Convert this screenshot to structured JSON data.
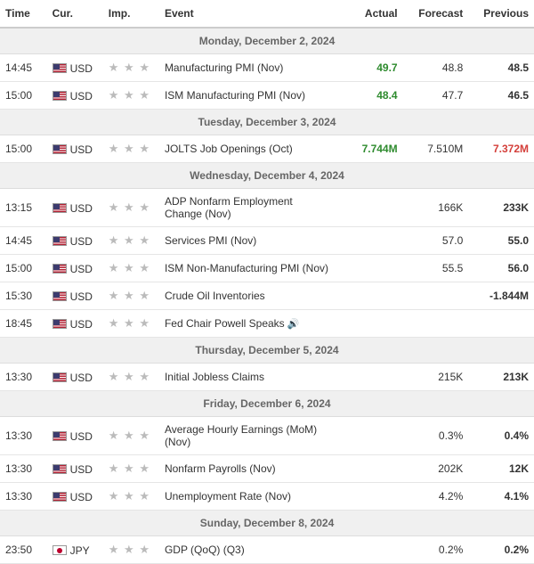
{
  "headers": {
    "time": "Time",
    "cur": "Cur.",
    "imp": "Imp.",
    "event": "Event",
    "actual": "Actual",
    "forecast": "Forecast",
    "previous": "Previous"
  },
  "days": [
    {
      "label": "Monday, December 2, 2024",
      "rows": [
        {
          "time": "14:45",
          "cur": "USD",
          "flag": "us",
          "stars": "★ ★ ★",
          "event": "Manufacturing PMI (Nov)",
          "actual": "49.7",
          "actual_class": "green",
          "forecast": "48.8",
          "previous": "48.5",
          "prev_class": ""
        },
        {
          "time": "15:00",
          "cur": "USD",
          "flag": "us",
          "stars": "★ ★ ★",
          "event": "ISM Manufacturing PMI (Nov)",
          "actual": "48.4",
          "actual_class": "green",
          "forecast": "47.7",
          "previous": "46.5",
          "prev_class": ""
        }
      ]
    },
    {
      "label": "Tuesday, December 3, 2024",
      "rows": [
        {
          "time": "15:00",
          "cur": "USD",
          "flag": "us",
          "stars": "★ ★ ★",
          "event": "JOLTS Job Openings (Oct)",
          "actual": "7.744M",
          "actual_class": "green",
          "forecast": "7.510M",
          "previous": "7.372M",
          "prev_class": "red"
        }
      ]
    },
    {
      "label": "Wednesday, December 4, 2024",
      "rows": [
        {
          "time": "13:15",
          "cur": "USD",
          "flag": "us",
          "stars": "★ ★ ★",
          "event": "ADP Nonfarm Employment Change (Nov)",
          "actual": "",
          "actual_class": "",
          "forecast": "166K",
          "previous": "233K",
          "prev_class": ""
        },
        {
          "time": "14:45",
          "cur": "USD",
          "flag": "us",
          "stars": "★ ★ ★",
          "event": "Services PMI (Nov)",
          "actual": "",
          "actual_class": "",
          "forecast": "57.0",
          "previous": "55.0",
          "prev_class": ""
        },
        {
          "time": "15:00",
          "cur": "USD",
          "flag": "us",
          "stars": "★ ★ ★",
          "event": "ISM Non-Manufacturing PMI (Nov)",
          "actual": "",
          "actual_class": "",
          "forecast": "55.5",
          "previous": "56.0",
          "prev_class": ""
        },
        {
          "time": "15:30",
          "cur": "USD",
          "flag": "us",
          "stars": "★ ★ ★",
          "event": "Crude Oil Inventories",
          "actual": "",
          "actual_class": "",
          "forecast": "",
          "previous": "-1.844M",
          "prev_class": ""
        },
        {
          "time": "18:45",
          "cur": "USD",
          "flag": "us",
          "stars": "★ ★ ★",
          "event": "Fed Chair Powell Speaks",
          "audio": true,
          "actual": "",
          "actual_class": "",
          "forecast": "",
          "previous": "",
          "prev_class": ""
        }
      ]
    },
    {
      "label": "Thursday, December 5, 2024",
      "rows": [
        {
          "time": "13:30",
          "cur": "USD",
          "flag": "us",
          "stars": "★ ★ ★",
          "event": "Initial Jobless Claims",
          "actual": "",
          "actual_class": "",
          "forecast": "215K",
          "previous": "213K",
          "prev_class": ""
        }
      ]
    },
    {
      "label": "Friday, December 6, 2024",
      "rows": [
        {
          "time": "13:30",
          "cur": "USD",
          "flag": "us",
          "stars": "★ ★ ★",
          "event": "Average Hourly Earnings (MoM) (Nov)",
          "actual": "",
          "actual_class": "",
          "forecast": "0.3%",
          "previous": "0.4%",
          "prev_class": ""
        },
        {
          "time": "13:30",
          "cur": "USD",
          "flag": "us",
          "stars": "★ ★ ★",
          "event": "Nonfarm Payrolls (Nov)",
          "actual": "",
          "actual_class": "",
          "forecast": "202K",
          "previous": "12K",
          "prev_class": ""
        },
        {
          "time": "13:30",
          "cur": "USD",
          "flag": "us",
          "stars": "★ ★ ★",
          "event": "Unemployment Rate (Nov)",
          "actual": "",
          "actual_class": "",
          "forecast": "4.2%",
          "previous": "4.1%",
          "prev_class": ""
        }
      ]
    },
    {
      "label": "Sunday, December 8, 2024",
      "rows": [
        {
          "time": "23:50",
          "cur": "JPY",
          "flag": "jp",
          "stars": "★ ★ ★",
          "event": "GDP (QoQ) (Q3)",
          "actual": "",
          "actual_class": "",
          "forecast": "0.2%",
          "previous": "0.2%",
          "prev_class": ""
        }
      ]
    }
  ]
}
